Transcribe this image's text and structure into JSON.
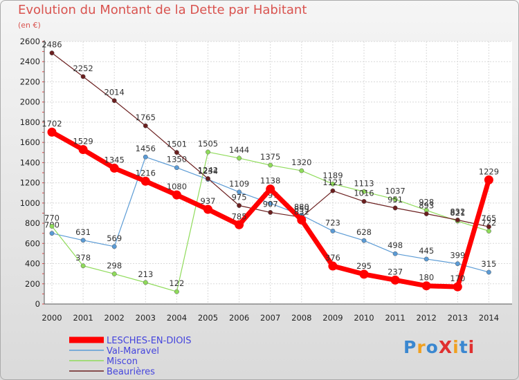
{
  "title": "Evolution du Montant de la Dette par Habitant",
  "subtitle": "(en €)",
  "logo": "ProXiti",
  "chart_data": {
    "type": "line",
    "title": "Evolution du Montant de la Dette par Habitant",
    "subtitle": "(en €)",
    "ylim": [
      0,
      2600
    ],
    "y_ticks": [
      0,
      200,
      400,
      600,
      800,
      1000,
      1200,
      1400,
      1600,
      1800,
      2000,
      2200,
      2400,
      2600
    ],
    "x": [
      "2000",
      "2001",
      "2002",
      "2003",
      "2004",
      "2005",
      "2006",
      "2007",
      "2008",
      "2009",
      "2010",
      "2011",
      "2012",
      "2013",
      "2014"
    ],
    "grid": true,
    "legend_position": "bottom-left",
    "series": [
      {
        "name": "LESCHES-EN-DIOIS",
        "color": "#ff0000",
        "values": [
          1702,
          1529,
          1345,
          1216,
          1080,
          937,
          785,
          1138,
          832,
          376,
          295,
          237,
          180,
          170,
          1229
        ]
      },
      {
        "name": "Val-Maravel",
        "color": "#5b9bd5",
        "values": [
          700,
          631,
          569,
          1456,
          1350,
          1234,
          1109,
          997,
          880,
          723,
          628,
          498,
          445,
          399,
          315
        ]
      },
      {
        "name": "Miscon",
        "color": "#8fdb5a",
        "values": [
          770,
          378,
          298,
          213,
          122,
          1505,
          1444,
          1375,
          1320,
          1189,
          1113,
          1037,
          928,
          821,
          722
        ]
      },
      {
        "name": "Beaurières",
        "color": "#6b1f1f",
        "values": [
          2486,
          2252,
          2014,
          1765,
          1501,
          1242,
          975,
          907,
          859,
          1121,
          1016,
          951,
          893,
          832,
          765
        ]
      }
    ]
  }
}
